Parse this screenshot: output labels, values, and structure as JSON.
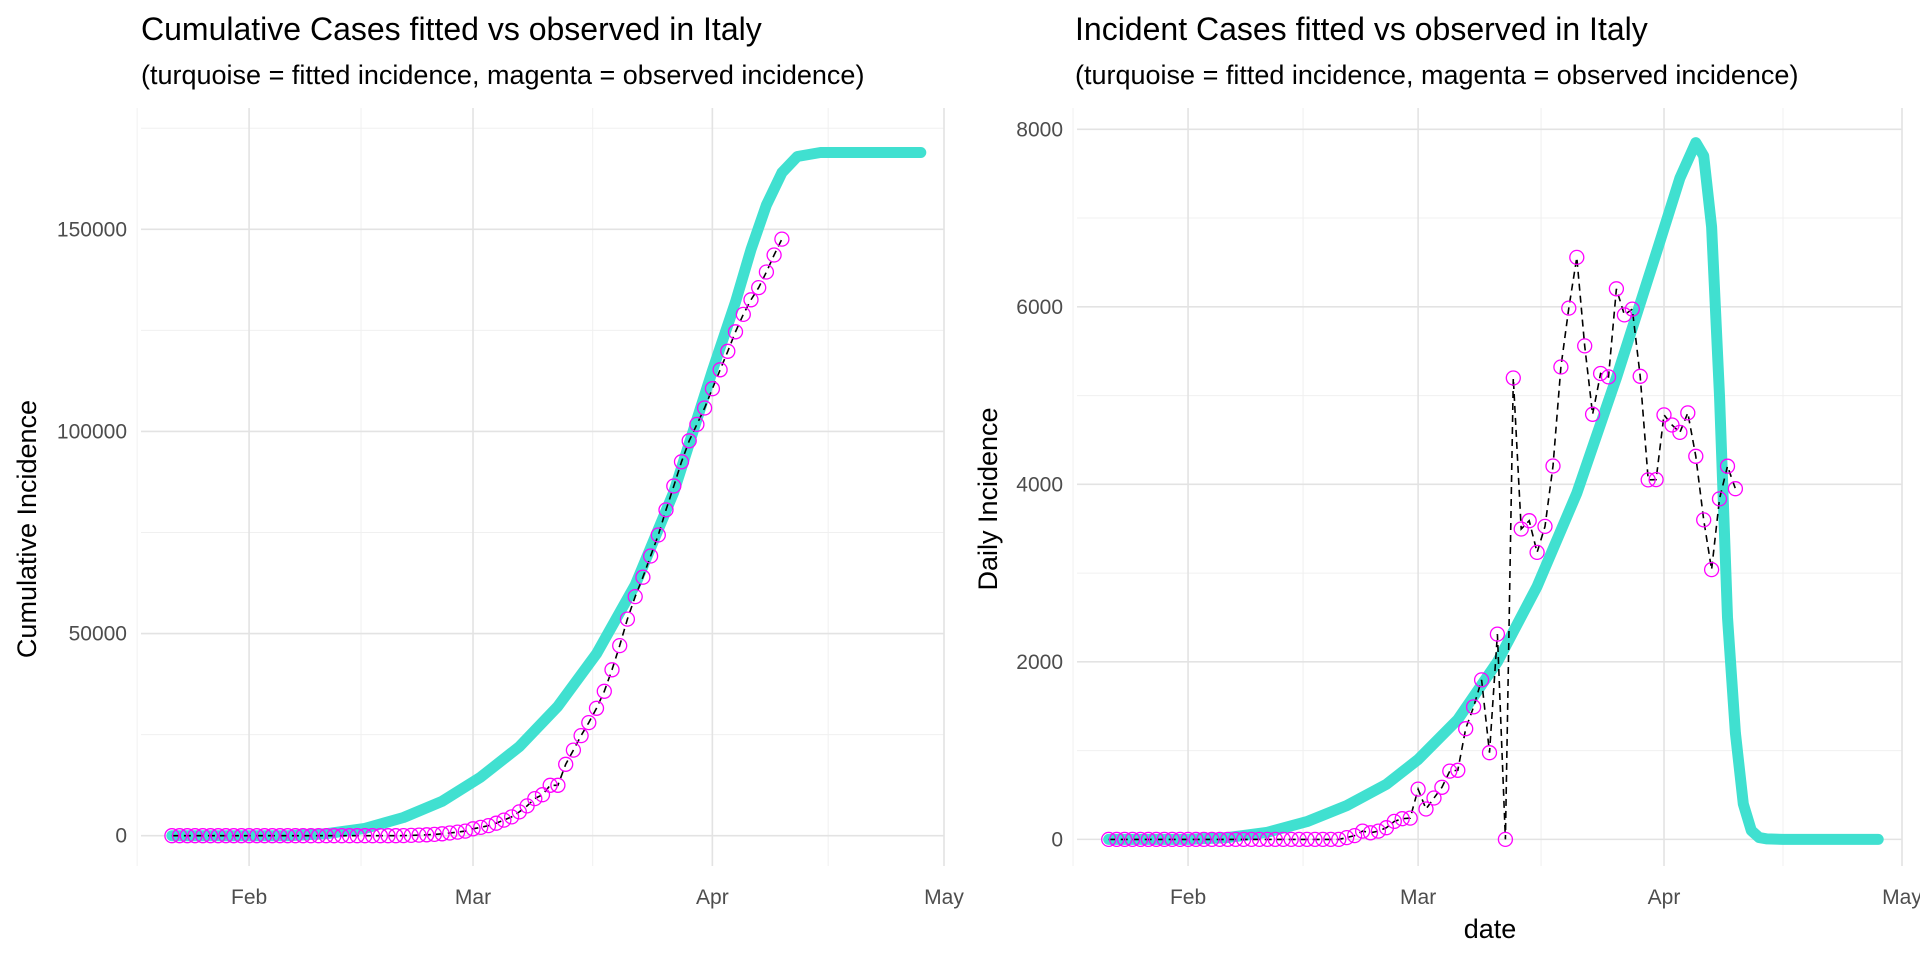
{
  "chart_data": [
    {
      "type": "line",
      "title": "Cumulative Cases fitted vs observed in Italy",
      "subtitle": "(turquoise = fitted incidence, magenta = observed incidence)",
      "xlabel": "",
      "ylabel": "Cumulative Incidence",
      "xlim": [
        "2020-01-18",
        "2020-05-01"
      ],
      "ylim": [
        -7500,
        180000
      ],
      "x_ticks": [
        "Feb",
        "Mar",
        "Apr",
        "May"
      ],
      "x_tick_dates": [
        "2020-02-01",
        "2020-03-01",
        "2020-04-01",
        "2020-05-01"
      ],
      "y_ticks": [
        0,
        50000,
        100000,
        150000
      ],
      "y_tick_labels": [
        "0",
        "50000",
        "100000",
        "150000"
      ],
      "grid": true,
      "colors": {
        "fitted": "#40E0D0",
        "observed": "#FF00FF",
        "connector": "#000000"
      },
      "series": [
        {
          "style": "thick-line",
          "x": [
            "2020-01-22",
            "2020-01-27",
            "2020-02-01",
            "2020-02-06",
            "2020-02-11",
            "2020-02-16",
            "2020-02-21",
            "2020-02-26",
            "2020-03-02",
            "2020-03-07",
            "2020-03-12",
            "2020-03-17",
            "2020-03-22",
            "2020-03-27",
            "2020-04-01",
            "2020-04-04",
            "2020-04-06",
            "2020-04-08",
            "2020-04-10",
            "2020-04-12",
            "2020-04-15",
            "2020-04-20",
            "2020-04-25",
            "2020-04-28"
          ],
          "values": [
            0,
            0,
            0,
            0,
            500,
            1800,
            4500,
            8500,
            14500,
            22000,
            32000,
            45000,
            62000,
            85000,
            115000,
            132000,
            145000,
            156000,
            164000,
            168000,
            169000,
            169000,
            169000,
            169000
          ]
        },
        {
          "style": "circles-dashed",
          "x": [
            "2020-01-22",
            "2020-01-23",
            "2020-01-24",
            "2020-01-25",
            "2020-01-26",
            "2020-01-27",
            "2020-01-28",
            "2020-01-29",
            "2020-01-30",
            "2020-01-31",
            "2020-02-01",
            "2020-02-02",
            "2020-02-03",
            "2020-02-04",
            "2020-02-05",
            "2020-02-06",
            "2020-02-07",
            "2020-02-08",
            "2020-02-09",
            "2020-02-10",
            "2020-02-11",
            "2020-02-12",
            "2020-02-13",
            "2020-02-14",
            "2020-02-15",
            "2020-02-16",
            "2020-02-17",
            "2020-02-18",
            "2020-02-19",
            "2020-02-20",
            "2020-02-21",
            "2020-02-22",
            "2020-02-23",
            "2020-02-24",
            "2020-02-25",
            "2020-02-26",
            "2020-02-27",
            "2020-02-28",
            "2020-02-29",
            "2020-03-01",
            "2020-03-02",
            "2020-03-03",
            "2020-03-04",
            "2020-03-05",
            "2020-03-06",
            "2020-03-07",
            "2020-03-08",
            "2020-03-09",
            "2020-03-10",
            "2020-03-11",
            "2020-03-12",
            "2020-03-13",
            "2020-03-14",
            "2020-03-15",
            "2020-03-16",
            "2020-03-17",
            "2020-03-18",
            "2020-03-19",
            "2020-03-20",
            "2020-03-21",
            "2020-03-22",
            "2020-03-23",
            "2020-03-24",
            "2020-03-25",
            "2020-03-26",
            "2020-03-27",
            "2020-03-28",
            "2020-03-29",
            "2020-03-30",
            "2020-03-31",
            "2020-04-01",
            "2020-04-02",
            "2020-04-03",
            "2020-04-04",
            "2020-04-05",
            "2020-04-06",
            "2020-04-07",
            "2020-04-08",
            "2020-04-09",
            "2020-04-10"
          ],
          "values": [
            0,
            0,
            0,
            0,
            0,
            0,
            0,
            0,
            0,
            0,
            0,
            0,
            0,
            0,
            0,
            0,
            0,
            0,
            0,
            0,
            0,
            0,
            0,
            0,
            0,
            0,
            0,
            0,
            0,
            0,
            20,
            62,
            155,
            229,
            322,
            453,
            655,
            888,
            1128,
            1694,
            2036,
            2502,
            3089,
            3858,
            4636,
            5883,
            7375,
            9172,
            10149,
            12462,
            12462,
            17660,
            21157,
            24747,
            27980,
            31506,
            35713,
            41035,
            47021,
            53578,
            59138,
            63927,
            69176,
            74386,
            80589,
            86498,
            92472,
            97689,
            101739,
            105792,
            110574,
            115242,
            119827,
            124632,
            128948,
            132547,
            135586,
            139422,
            143626,
            147577
          ]
        }
      ]
    },
    {
      "type": "line",
      "title": "Incident Cases fitted vs observed in Italy",
      "subtitle": "(turquoise = fitted incidence, magenta = observed incidence)",
      "xlabel": "date",
      "ylabel": "Daily Incidence",
      "xlim": [
        "2020-01-18",
        "2020-05-01"
      ],
      "ylim": [
        -300,
        8240
      ],
      "x_ticks": [
        "Feb",
        "Mar",
        "Apr",
        "May"
      ],
      "x_tick_dates": [
        "2020-02-01",
        "2020-03-01",
        "2020-04-01",
        "2020-05-01"
      ],
      "y_ticks": [
        0,
        2000,
        4000,
        6000,
        8000
      ],
      "y_tick_labels": [
        "0",
        "2000",
        "4000",
        "6000",
        "8000"
      ],
      "grid": true,
      "colors": {
        "fitted": "#40E0D0",
        "observed": "#FF00FF",
        "connector": "#000000"
      },
      "series": [
        {
          "style": "thick-line",
          "x": [
            "2020-01-22",
            "2020-01-27",
            "2020-02-01",
            "2020-02-06",
            "2020-02-11",
            "2020-02-16",
            "2020-02-21",
            "2020-02-26",
            "2020-03-01",
            "2020-03-06",
            "2020-03-11",
            "2020-03-16",
            "2020-03-21",
            "2020-03-26",
            "2020-03-31",
            "2020-04-03",
            "2020-04-05",
            "2020-04-06",
            "2020-04-07",
            "2020-04-08",
            "2020-04-09",
            "2020-04-10",
            "2020-04-11",
            "2020-04-12",
            "2020-04-13",
            "2020-04-14",
            "2020-04-16",
            "2020-04-18",
            "2020-04-22",
            "2020-04-28"
          ],
          "values": [
            0,
            0,
            0,
            20,
            80,
            200,
            380,
            620,
            900,
            1350,
            2000,
            2850,
            3900,
            5200,
            6600,
            7450,
            7850,
            7700,
            6900,
            5000,
            2500,
            1200,
            400,
            100,
            20,
            5,
            0,
            0,
            0,
            0
          ]
        },
        {
          "style": "circles-dashed",
          "x": [
            "2020-01-22",
            "2020-01-23",
            "2020-01-24",
            "2020-01-25",
            "2020-01-26",
            "2020-01-27",
            "2020-01-28",
            "2020-01-29",
            "2020-01-30",
            "2020-01-31",
            "2020-02-01",
            "2020-02-02",
            "2020-02-03",
            "2020-02-04",
            "2020-02-05",
            "2020-02-06",
            "2020-02-07",
            "2020-02-08",
            "2020-02-09",
            "2020-02-10",
            "2020-02-11",
            "2020-02-12",
            "2020-02-13",
            "2020-02-14",
            "2020-02-15",
            "2020-02-16",
            "2020-02-17",
            "2020-02-18",
            "2020-02-19",
            "2020-02-20",
            "2020-02-21",
            "2020-02-22",
            "2020-02-23",
            "2020-02-24",
            "2020-02-25",
            "2020-02-26",
            "2020-02-27",
            "2020-02-28",
            "2020-02-29",
            "2020-03-01",
            "2020-03-02",
            "2020-03-03",
            "2020-03-04",
            "2020-03-05",
            "2020-03-06",
            "2020-03-07",
            "2020-03-08",
            "2020-03-09",
            "2020-03-10",
            "2020-03-11",
            "2020-03-12",
            "2020-03-13",
            "2020-03-14",
            "2020-03-15",
            "2020-03-16",
            "2020-03-17",
            "2020-03-18",
            "2020-03-19",
            "2020-03-20",
            "2020-03-21",
            "2020-03-22",
            "2020-03-23",
            "2020-03-24",
            "2020-03-25",
            "2020-03-26",
            "2020-03-27",
            "2020-03-28",
            "2020-03-29",
            "2020-03-30",
            "2020-03-31",
            "2020-04-01",
            "2020-04-02",
            "2020-04-03",
            "2020-04-04",
            "2020-04-05",
            "2020-04-06",
            "2020-04-07",
            "2020-04-08",
            "2020-04-09",
            "2020-04-10"
          ],
          "values": [
            0,
            0,
            0,
            0,
            0,
            0,
            0,
            0,
            0,
            0,
            0,
            0,
            0,
            0,
            0,
            0,
            0,
            0,
            0,
            0,
            0,
            0,
            0,
            0,
            0,
            0,
            0,
            0,
            0,
            0,
            20,
            42,
            93,
            74,
            93,
            131,
            202,
            233,
            240,
            566,
            342,
            466,
            587,
            769,
            778,
            1247,
            1492,
            1797,
            977,
            2313,
            0,
            5198,
            3497,
            3590,
            3233,
            3526,
            4207,
            5322,
            5986,
            6557,
            5560,
            4789,
            5249,
            5210,
            6203,
            5909,
            5974,
            5217,
            4050,
            4053,
            4782,
            4668,
            4585,
            4805,
            4316,
            3599,
            3039,
            3836,
            4204,
            3951
          ]
        }
      ]
    }
  ]
}
